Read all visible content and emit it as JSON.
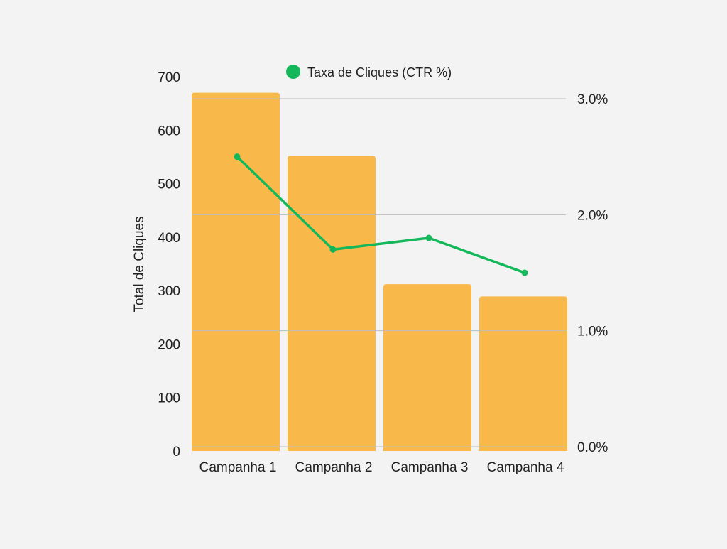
{
  "chart_data": {
    "type": "bar+line",
    "categories": [
      "Campanha 1",
      "Campanha 2",
      "Campanha 3",
      "Campanha 4"
    ],
    "series": [
      {
        "name": "Total de Cliques",
        "type": "bar",
        "axis": "left",
        "values": [
          670,
          552,
          312,
          289
        ]
      },
      {
        "name": "Taxa de Cliques (CTR %)",
        "type": "line",
        "axis": "right",
        "values": [
          2.5,
          1.7,
          1.8,
          1.5
        ]
      }
    ],
    "ylabel": "Total de Cliques",
    "ylim": [
      0,
      700
    ],
    "yticks": [
      "0",
      "100",
      "200",
      "300",
      "400",
      "500",
      "600",
      "700"
    ],
    "y2lim": [
      0,
      3.0
    ],
    "y2ticks": [
      "0.0%",
      "1.0%",
      "2.0%",
      "3.0%"
    ],
    "y2tick_values": [
      0,
      1,
      2,
      3
    ],
    "legend": {
      "label": "Taxa de Cliques (CTR %)",
      "placement": "top-center"
    },
    "grid": true,
    "colors": {
      "bar": "#f9b84a",
      "line": "#14b85a",
      "grid": "#bdbdbd",
      "background": "#f3f3f3"
    }
  }
}
